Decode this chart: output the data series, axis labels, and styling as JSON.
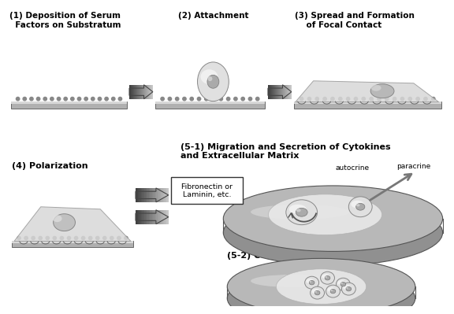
{
  "bg_color": "#ffffff",
  "text_color": "#000000",
  "title1": "(1) Deposition of Serum\n  Factors on Substratum",
  "title2": "(2) Attachment",
  "title3": "(3) Spread and Formation\n    of Focal Contact",
  "title4": "(4) Polarization",
  "title51_line1": "(5-1) Migration and Secretion of Cytokines",
  "title51_line2": "and Extracellular Matrix",
  "title52": "(5-2) Colony Formation",
  "label_autocrine": "autocrine",
  "label_paracrine": "paracrine",
  "label_fibronectin": "Fibronectin or\nLaminin, etc."
}
